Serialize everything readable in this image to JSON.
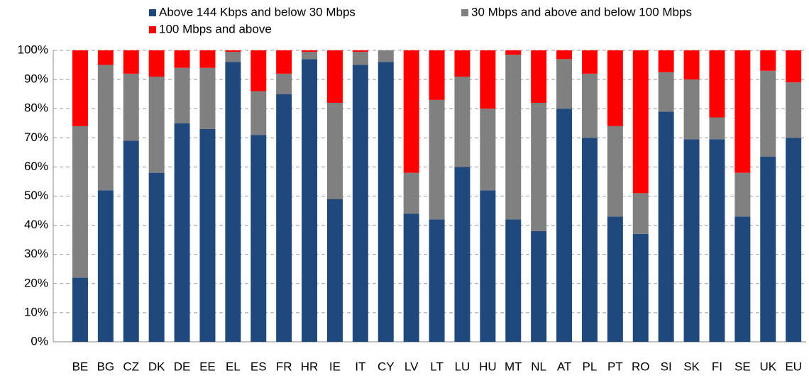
{
  "chart_data": {
    "type": "stacked_bar",
    "categories": [
      "BE",
      "BG",
      "CZ",
      "DK",
      "DE",
      "EE",
      "EL",
      "ES",
      "FR",
      "HR",
      "IE",
      "IT",
      "CY",
      "LV",
      "LT",
      "LU",
      "HU",
      "MT",
      "NL",
      "AT",
      "PL",
      "PT",
      "RO",
      "SI",
      "SK",
      "FI",
      "SE",
      "UK",
      "EU"
    ],
    "series": [
      {
        "name": "Above 144 Kbps and below 30 Mbps",
        "color": "#1f497d",
        "values": [
          22,
          52,
          69,
          58,
          75,
          73,
          96,
          71,
          85,
          97,
          49,
          95,
          96,
          44,
          42,
          60,
          52,
          42,
          38,
          80,
          70,
          43,
          37,
          79,
          69.5,
          69.5,
          43,
          63.5,
          70
        ]
      },
      {
        "name": "30 Mbps and above and below 100 Mbps",
        "color": "#808080",
        "values": [
          52,
          43,
          23,
          33,
          19,
          21,
          3.5,
          15,
          7,
          2.5,
          33,
          4.5,
          4,
          14,
          41,
          31,
          28,
          56.5,
          44,
          17,
          22,
          31,
          14,
          13.5,
          20.5,
          7.5,
          15,
          29.5,
          19
        ]
      },
      {
        "name": "100 Mbps and above",
        "color": "#ff0000",
        "values": [
          26,
          5,
          8,
          9,
          6,
          6,
          0.5,
          14,
          8,
          0.5,
          18,
          0.5,
          0,
          42,
          17,
          9,
          20,
          1.5,
          18,
          3,
          8,
          26,
          49,
          7.5,
          10,
          23,
          42,
          7,
          11
        ]
      }
    ],
    "ylim": [
      0,
      100
    ],
    "yticks": [
      {
        "value": 0,
        "label": "0%"
      },
      {
        "value": 10,
        "label": "10%"
      },
      {
        "value": 20,
        "label": "20%"
      },
      {
        "value": 30,
        "label": "30%"
      },
      {
        "value": 40,
        "label": "40%"
      },
      {
        "value": 50,
        "label": "50%"
      },
      {
        "value": 60,
        "label": "60%"
      },
      {
        "value": 70,
        "label": "70%"
      },
      {
        "value": 80,
        "label": "80%"
      },
      {
        "value": 90,
        "label": "90%"
      },
      {
        "value": 100,
        "label": "100%"
      }
    ],
    "grid": true
  }
}
